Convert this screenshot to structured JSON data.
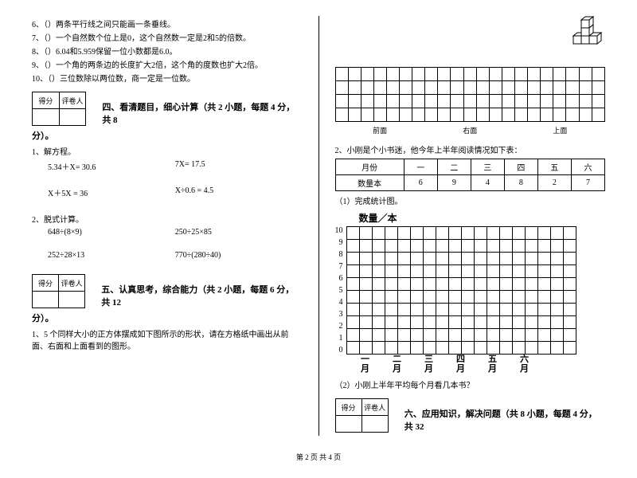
{
  "tf": [
    {
      "n": "6、（",
      "t": "）两条平行线之间只能画一条垂线。"
    },
    {
      "n": "7、（",
      "t": "）一个自然数个位上是0，这个自然数一定是2和5的倍数。"
    },
    {
      "n": "8、（",
      "t": "）6.04和5.959保留一位小数都是6.0。"
    },
    {
      "n": "9、（",
      "t": "）一个角的两条边的长度扩大2倍，这个角的度数也扩大2倍。"
    },
    {
      "n": "10、（",
      "t": "）三位数除以两位数，商一定是一位数。"
    }
  ],
  "score": {
    "h1": "得分",
    "h2": "评卷人"
  },
  "s4": {
    "title": "四、看清题目，细心计算（共 2 小题，每题 4 分，共 8",
    "tail": "分）。",
    "p1": "1、解方程。",
    "e1a": "5.34＋X= 30.6",
    "e1b": "7X= 17.5",
    "e2a": "X＋5X = 36",
    "e2b": "X÷0.6 = 4.5",
    "p2": "2、脱式计算。",
    "e3a": "648÷(8×9)",
    "e3b": "250÷25×85",
    "e4a": "252÷28×13",
    "e4b": "770÷(280÷40)"
  },
  "s5": {
    "title": "五、认真思考，综合能力（共 2 小题，每题 6 分，共 12",
    "tail": "分）。",
    "p1": "1、5 个同样大小的正方体摆成如下图所示的形状，请在方格纸中画出从前面、右面和上面看到的图形。"
  },
  "views": {
    "a": "前面",
    "b": "右面",
    "c": "上面"
  },
  "s52": {
    "intro": "2、小刚是个小书迷，他今年上半年阅读情况如下表：",
    "h": [
      "月份",
      "一",
      "二",
      "三",
      "四",
      "五",
      "六"
    ],
    "r": [
      "数量本",
      "6",
      "9",
      "4",
      "8",
      "2",
      "7"
    ],
    "q1": "（1）完成统计图。",
    "chartTitle": "数量／本",
    "y": [
      "10",
      "9",
      "8",
      "7",
      "6",
      "5",
      "4",
      "3",
      "2",
      "1",
      "0"
    ],
    "x": [
      "一月",
      "二月",
      "三月",
      "四月",
      "五月",
      "六月"
    ],
    "q2": "（2）小刚上半年平均每个月看几本书？"
  },
  "s6": {
    "title": "六、应用知识，解决问题（共 8 小题，每题 4 分，共 32"
  },
  "footer": "第 2 页 共 4 页"
}
